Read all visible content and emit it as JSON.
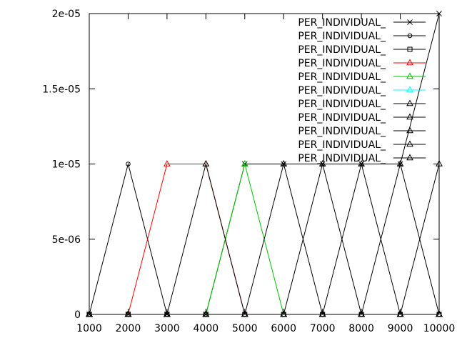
{
  "chart_data": {
    "type": "line",
    "title": "",
    "xlabel": "",
    "ylabel": "",
    "xlim": [
      1000,
      10000
    ],
    "ylim": [
      0,
      2e-05
    ],
    "grid": false,
    "legend_position": "top-right",
    "xticks": [
      {
        "value": 1000,
        "label": "1000"
      },
      {
        "value": 2000,
        "label": "2000"
      },
      {
        "value": 3000,
        "label": "3000"
      },
      {
        "value": 4000,
        "label": "4000"
      },
      {
        "value": 5000,
        "label": "5000"
      },
      {
        "value": 6000,
        "label": "6000"
      },
      {
        "value": 7000,
        "label": "7000"
      },
      {
        "value": 8000,
        "label": "8000"
      },
      {
        "value": 9000,
        "label": "9000"
      },
      {
        "value": 10000,
        "label": "10000"
      }
    ],
    "yticks": [
      {
        "value": 0,
        "label": "0"
      },
      {
        "value": 5e-06,
        "label": "5e-06"
      },
      {
        "value": 1e-05,
        "label": "1e-05"
      },
      {
        "value": 1.5e-05,
        "label": "1.5e-05"
      },
      {
        "value": 2e-05,
        "label": "2e-05"
      }
    ],
    "x": [
      1000,
      2000,
      3000,
      4000,
      5000,
      6000,
      7000,
      8000,
      9000,
      10000
    ],
    "series": [
      {
        "name": "PER_INDIVIDUAL_",
        "color": "#000000",
        "marker": "x",
        "values": [
          0,
          0,
          0,
          0,
          1e-05,
          1e-05,
          1e-05,
          1e-05,
          1e-05,
          2e-05
        ]
      },
      {
        "name": "PER_INDIVIDUAL_",
        "color": "#000000",
        "marker": "circle",
        "values": [
          0,
          1e-05,
          0,
          0,
          0,
          0,
          0,
          0,
          0,
          0
        ]
      },
      {
        "name": "PER_INDIVIDUAL_",
        "color": "#000000",
        "marker": "square",
        "values": [
          0,
          0,
          0,
          0,
          0,
          0,
          0,
          0,
          0,
          0
        ]
      },
      {
        "name": "PER_INDIVIDUAL_",
        "color": "#ff0000",
        "marker": "triangle",
        "values": [
          0,
          0,
          1e-05,
          1e-05,
          0,
          0,
          0,
          0,
          0,
          0
        ]
      },
      {
        "name": "PER_INDIVIDUAL_",
        "color": "#00c000",
        "marker": "triangle",
        "values": [
          0,
          0,
          0,
          0,
          1e-05,
          0,
          0,
          0,
          0,
          0
        ]
      },
      {
        "name": "PER_INDIVIDUAL_",
        "color": "#00ffff",
        "marker": "triangle",
        "values": [
          0,
          0,
          0,
          0,
          0,
          0,
          0,
          0,
          0,
          0
        ]
      },
      {
        "name": "PER_INDIVIDUAL_",
        "color": "#000000",
        "marker": "triangle",
        "values": [
          0,
          0,
          0,
          1e-05,
          0,
          0,
          0,
          0,
          0,
          0
        ]
      },
      {
        "name": "PER_INDIVIDUAL_",
        "color": "#000000",
        "marker": "triangle",
        "values": [
          0,
          0,
          0,
          0,
          0,
          1e-05,
          0,
          0,
          0,
          0
        ]
      },
      {
        "name": "PER_INDIVIDUAL_",
        "color": "#000000",
        "marker": "triangle",
        "values": [
          0,
          0,
          0,
          0,
          0,
          0,
          1e-05,
          0,
          0,
          0
        ]
      },
      {
        "name": "PER_INDIVIDUAL_",
        "color": "#000000",
        "marker": "triangle",
        "values": [
          0,
          0,
          0,
          0,
          0,
          0,
          0,
          1e-05,
          0,
          0
        ]
      },
      {
        "name": "PER_INDIVIDUAL_",
        "color": "#000000",
        "marker": "triangle",
        "values": [
          0,
          0,
          0,
          0,
          0,
          0,
          0,
          0,
          1e-05,
          0
        ]
      },
      {
        "name": "",
        "color": "#000000",
        "marker": "triangle",
        "values": [
          0,
          0,
          0,
          0,
          0,
          0,
          0,
          0,
          0,
          1e-05
        ]
      }
    ]
  }
}
